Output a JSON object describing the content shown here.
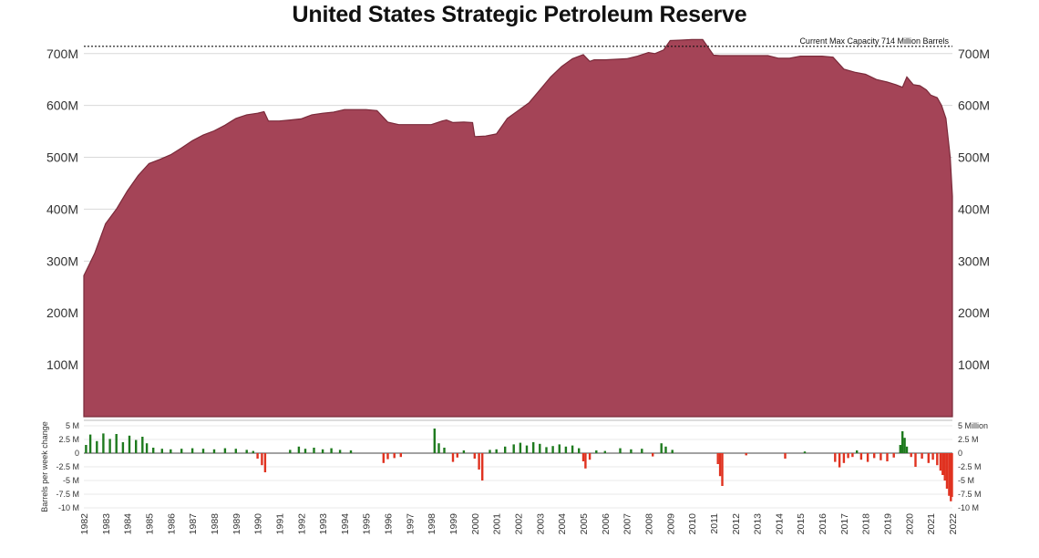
{
  "title": "United States Strategic Petroleum Reserve",
  "chart_data": [
    {
      "type": "area",
      "title": "United States Strategic Petroleum Reserve",
      "ylabel": "",
      "ylim": [
        0,
        740
      ],
      "y_unit": "million barrels",
      "y_ticks": [
        "100M",
        "200M",
        "300M",
        "400M",
        "500M",
        "600M",
        "700M"
      ],
      "y_tick_values": [
        100,
        200,
        300,
        400,
        500,
        600,
        700
      ],
      "color": "#a44457",
      "reference_line": {
        "value": 714,
        "label": "Current Max Capacity 714 Million Barrels",
        "style": "dotted"
      },
      "series": [
        {
          "x": [
            1982.0,
            1982.5,
            1983.0,
            1983.5,
            1984.0,
            1984.5,
            1985.0,
            1985.5,
            1986.0,
            1986.5,
            1987.0,
            1987.5,
            1988.0,
            1988.5,
            1989.0,
            1989.5,
            1990.0,
            1990.3,
            1990.5,
            1991.0,
            1991.5,
            1992.0,
            1992.5,
            1993.0,
            1993.5,
            1994.0,
            1994.5,
            1995.0,
            1995.5,
            1996.0,
            1996.5,
            1997.0,
            1997.5,
            1998.0,
            1998.5,
            1998.7,
            1999.0,
            1999.5,
            1999.9,
            2000.0,
            2000.5,
            2001.0,
            2001.5,
            2002.0,
            2002.5,
            2003.0,
            2003.5,
            2004.0,
            2004.5,
            2005.0,
            2005.3,
            2005.5,
            2006.0,
            2006.5,
            2007.0,
            2007.5,
            2008.0,
            2008.3,
            2008.7,
            2009.0,
            2009.5,
            2010.0,
            2010.5,
            2011.0,
            2011.3,
            2012.0,
            2012.5,
            2013.0,
            2013.5,
            2014.0,
            2014.5,
            2015.0,
            2015.5,
            2016.0,
            2016.5,
            2017.0,
            2017.5,
            2018.0,
            2018.5,
            2019.0,
            2019.4,
            2019.7,
            2019.9,
            2020.2,
            2020.5,
            2020.8,
            2021.0,
            2021.3,
            2021.5,
            2021.7,
            2021.9,
            2022.0
          ],
          "values": [
            272,
            315,
            372,
            400,
            435,
            465,
            488,
            496,
            505,
            518,
            532,
            543,
            551,
            562,
            575,
            582,
            585,
            588,
            570,
            570,
            572,
            574,
            582,
            585,
            587,
            592,
            592,
            592,
            590,
            568,
            563,
            563,
            563,
            563,
            570,
            572,
            567,
            568,
            567,
            540,
            541,
            545,
            575,
            590,
            605,
            630,
            655,
            675,
            690,
            698,
            685,
            688,
            688,
            689,
            690,
            695,
            702,
            700,
            707,
            725,
            726,
            727,
            727,
            697,
            696,
            696,
            696,
            696,
            696,
            691,
            691,
            695,
            695,
            695,
            693,
            670,
            664,
            660,
            650,
            645,
            640,
            635,
            655,
            640,
            638,
            630,
            620,
            615,
            600,
            575,
            500,
            425
          ]
        }
      ]
    },
    {
      "type": "bar",
      "ylabel": "Barrels per week change",
      "y_unit": "million barrels",
      "ylim": [
        -10,
        5
      ],
      "y_ticks_left": [
        "5 M",
        "2.5 M",
        "0",
        "-2.5 M",
        "-5 M",
        "-7.5 M",
        "-10 M"
      ],
      "y_ticks_right": [
        "5 Million",
        "2.5 M",
        "0",
        "-2.5 M",
        "-5 M",
        "-7.5 M",
        "-10 M"
      ],
      "y_tick_values": [
        5,
        2.5,
        0,
        -2.5,
        -5,
        -7.5,
        -10
      ],
      "positive_color": "#1e7a1e",
      "negative_color": "#e03220",
      "x_ticks": [
        "1982",
        "1983",
        "1984",
        "1985",
        "1986",
        "1987",
        "1988",
        "1989",
        "1990",
        "1991",
        "1992",
        "1993",
        "1994",
        "1995",
        "1996",
        "1997",
        "1998",
        "1999",
        "2000",
        "2001",
        "2002",
        "2003",
        "2004",
        "2005",
        "2006",
        "2007",
        "2008",
        "2009",
        "2010",
        "2011",
        "2012",
        "2013",
        "2014",
        "2015",
        "2016",
        "2017",
        "2018",
        "2019",
        "2020",
        "2021",
        "2022"
      ],
      "bars": [
        {
          "x": 1982.1,
          "v": 1.5
        },
        {
          "x": 1982.3,
          "v": 3.4
        },
        {
          "x": 1982.6,
          "v": 2.2
        },
        {
          "x": 1982.9,
          "v": 3.6
        },
        {
          "x": 1983.2,
          "v": 2.6
        },
        {
          "x": 1983.5,
          "v": 3.5
        },
        {
          "x": 1983.8,
          "v": 2.0
        },
        {
          "x": 1984.1,
          "v": 3.2
        },
        {
          "x": 1984.4,
          "v": 2.4
        },
        {
          "x": 1984.7,
          "v": 3.0
        },
        {
          "x": 1984.9,
          "v": 1.8
        },
        {
          "x": 1985.2,
          "v": 1.0
        },
        {
          "x": 1985.6,
          "v": 0.8
        },
        {
          "x": 1986.0,
          "v": 0.7
        },
        {
          "x": 1986.5,
          "v": 0.8
        },
        {
          "x": 1987.0,
          "v": 0.9
        },
        {
          "x": 1987.5,
          "v": 0.8
        },
        {
          "x": 1988.0,
          "v": 0.7
        },
        {
          "x": 1988.5,
          "v": 0.9
        },
        {
          "x": 1989.0,
          "v": 0.8
        },
        {
          "x": 1989.5,
          "v": 0.6
        },
        {
          "x": 1989.8,
          "v": 0.4
        },
        {
          "x": 1990.0,
          "v": -1.0
        },
        {
          "x": 1990.2,
          "v": -2.2
        },
        {
          "x": 1990.35,
          "v": -3.5
        },
        {
          "x": 1991.5,
          "v": 0.6
        },
        {
          "x": 1991.9,
          "v": 1.2
        },
        {
          "x": 1992.2,
          "v": 0.8
        },
        {
          "x": 1992.6,
          "v": 1.0
        },
        {
          "x": 1993.0,
          "v": 0.7
        },
        {
          "x": 1993.4,
          "v": 0.9
        },
        {
          "x": 1993.8,
          "v": 0.6
        },
        {
          "x": 1994.3,
          "v": 0.5
        },
        {
          "x": 1995.8,
          "v": -1.8
        },
        {
          "x": 1996.0,
          "v": -1.1
        },
        {
          "x": 1996.3,
          "v": -0.9
        },
        {
          "x": 1996.6,
          "v": -0.7
        },
        {
          "x": 1998.15,
          "v": 4.5
        },
        {
          "x": 1998.35,
          "v": 1.8
        },
        {
          "x": 1998.6,
          "v": 1.0
        },
        {
          "x": 1999.0,
          "v": -1.6
        },
        {
          "x": 1999.2,
          "v": -0.8
        },
        {
          "x": 1999.5,
          "v": 0.5
        },
        {
          "x": 2000.0,
          "v": -1.0
        },
        {
          "x": 2000.2,
          "v": -3.0
        },
        {
          "x": 2000.35,
          "v": -5.0
        },
        {
          "x": 2000.7,
          "v": 0.6
        },
        {
          "x": 2001.0,
          "v": 0.7
        },
        {
          "x": 2001.4,
          "v": 1.2
        },
        {
          "x": 2001.8,
          "v": 1.6
        },
        {
          "x": 2002.1,
          "v": 1.9
        },
        {
          "x": 2002.4,
          "v": 1.4
        },
        {
          "x": 2002.7,
          "v": 2.0
        },
        {
          "x": 2003.0,
          "v": 1.7
        },
        {
          "x": 2003.3,
          "v": 1.1
        },
        {
          "x": 2003.6,
          "v": 1.3
        },
        {
          "x": 2003.9,
          "v": 1.6
        },
        {
          "x": 2004.2,
          "v": 1.2
        },
        {
          "x": 2004.5,
          "v": 1.4
        },
        {
          "x": 2004.8,
          "v": 0.9
        },
        {
          "x": 2005.0,
          "v": -1.5
        },
        {
          "x": 2005.1,
          "v": -2.8
        },
        {
          "x": 2005.3,
          "v": -1.2
        },
        {
          "x": 2005.6,
          "v": 0.5
        },
        {
          "x": 2006.0,
          "v": 0.4
        },
        {
          "x": 2006.7,
          "v": 0.9
        },
        {
          "x": 2007.2,
          "v": 0.7
        },
        {
          "x": 2007.7,
          "v": 0.8
        },
        {
          "x": 2008.2,
          "v": -0.6
        },
        {
          "x": 2008.6,
          "v": 1.8
        },
        {
          "x": 2008.8,
          "v": 1.2
        },
        {
          "x": 2009.1,
          "v": 0.6
        },
        {
          "x": 2011.2,
          "v": -2.0
        },
        {
          "x": 2011.3,
          "v": -4.2
        },
        {
          "x": 2011.4,
          "v": -6.0
        },
        {
          "x": 2012.5,
          "v": -0.4
        },
        {
          "x": 2014.3,
          "v": -1.0
        },
        {
          "x": 2015.2,
          "v": 0.3
        },
        {
          "x": 2016.6,
          "v": -1.6
        },
        {
          "x": 2016.8,
          "v": -2.6
        },
        {
          "x": 2017.0,
          "v": -1.8
        },
        {
          "x": 2017.2,
          "v": -0.9
        },
        {
          "x": 2017.4,
          "v": -0.7
        },
        {
          "x": 2017.6,
          "v": 0.5
        },
        {
          "x": 2017.8,
          "v": -1.2
        },
        {
          "x": 2018.1,
          "v": -1.6
        },
        {
          "x": 2018.4,
          "v": -0.9
        },
        {
          "x": 2018.7,
          "v": -1.3
        },
        {
          "x": 2019.0,
          "v": -1.5
        },
        {
          "x": 2019.3,
          "v": -0.8
        },
        {
          "x": 2019.6,
          "v": 1.5
        },
        {
          "x": 2019.7,
          "v": 4.0
        },
        {
          "x": 2019.8,
          "v": 2.8
        },
        {
          "x": 2019.9,
          "v": 1.2
        },
        {
          "x": 2020.1,
          "v": -0.7
        },
        {
          "x": 2020.3,
          "v": -2.5
        },
        {
          "x": 2020.6,
          "v": -1.0
        },
        {
          "x": 2020.9,
          "v": -1.8
        },
        {
          "x": 2021.1,
          "v": -1.2
        },
        {
          "x": 2021.3,
          "v": -2.2
        },
        {
          "x": 2021.45,
          "v": -3.2
        },
        {
          "x": 2021.55,
          "v": -4.0
        },
        {
          "x": 2021.65,
          "v": -5.0
        },
        {
          "x": 2021.75,
          "v": -6.5
        },
        {
          "x": 2021.85,
          "v": -7.8
        },
        {
          "x": 2021.93,
          "v": -8.8
        },
        {
          "x": 2021.98,
          "v": -8.0
        }
      ]
    }
  ]
}
